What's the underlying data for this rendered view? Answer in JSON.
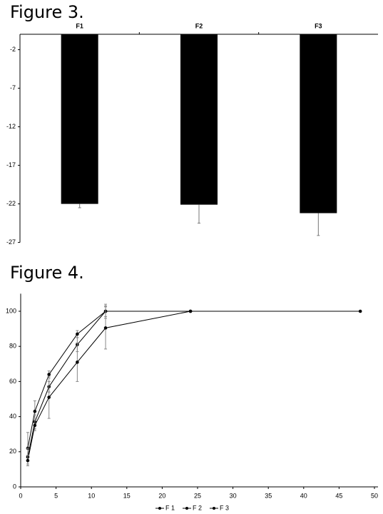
{
  "chart_data": [
    {
      "type": "bar",
      "title": "Figure 3.",
      "categories": [
        "F1",
        "F2",
        "F3"
      ],
      "values": [
        -22,
        -22.1,
        -23.2
      ],
      "errors": [
        0.5,
        2.4,
        2.9
      ],
      "color": "#000000",
      "ylim": [
        -27,
        0
      ],
      "yticks": [
        -2,
        -7,
        -12,
        -17,
        -22,
        -27
      ]
    },
    {
      "type": "line",
      "title": "Figure 4.",
      "x": [
        1,
        2,
        4,
        8,
        12,
        24,
        48
      ],
      "series": [
        {
          "name": "F 1",
          "color": "#000000",
          "values": [
            22,
            43,
            64,
            87,
            100,
            100,
            100
          ],
          "errors": [
            9,
            6,
            2,
            2,
            4,
            null,
            null
          ]
        },
        {
          "name": "F 2",
          "color": "#000000",
          "values": [
            17,
            37,
            57,
            81,
            100,
            null,
            null
          ],
          "errors": [
            5,
            4,
            3,
            4,
            3,
            null,
            null
          ]
        },
        {
          "name": "F 3",
          "color": "#000000",
          "values": [
            15,
            35,
            51,
            71,
            90.5,
            100,
            null
          ],
          "errors": [
            3,
            3,
            12,
            11,
            12,
            null,
            null
          ]
        }
      ],
      "xlim": [
        0,
        50
      ],
      "xticks": [
        0,
        5,
        10,
        15,
        20,
        25,
        30,
        35,
        40,
        45,
        50
      ],
      "ylim": [
        0,
        110
      ],
      "yticks": [
        0,
        20,
        40,
        60,
        80,
        100
      ]
    }
  ]
}
